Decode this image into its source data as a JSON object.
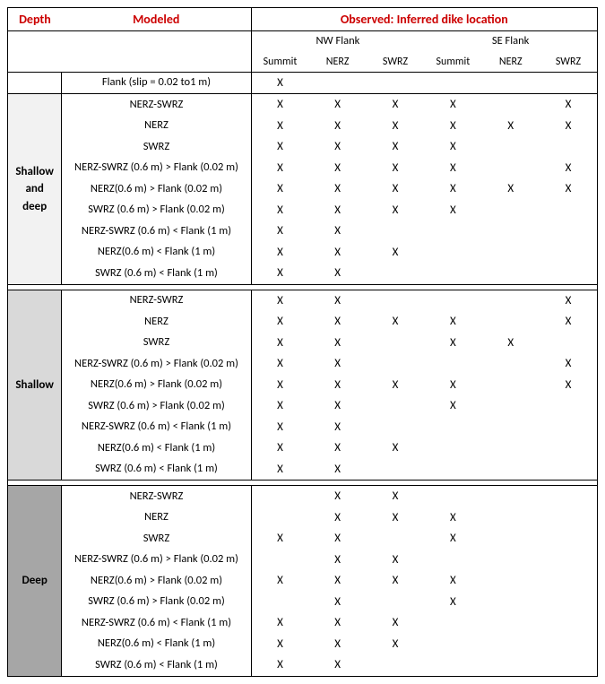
{
  "header": {
    "depth": "Depth",
    "modeled": "Modeled",
    "observed": "Observed: Inferred dike location",
    "nw_flank": "NW Flank",
    "se_flank": "SE Flank",
    "summit": "Summit",
    "nerz": "NERZ",
    "swrz": "SWRZ"
  },
  "flank_row": {
    "label": "Flank (slip = 0.02 to1 m)",
    "marks": [
      "X",
      "",
      "",
      "",
      "",
      ""
    ]
  },
  "sections": [
    {
      "depth_label": "Shallow\nand\ndeep",
      "bg": "bg1",
      "rows": [
        {
          "label": "NERZ-SWRZ",
          "marks": [
            "X",
            "X",
            "X",
            "X",
            "",
            "X"
          ]
        },
        {
          "label": "NERZ",
          "marks": [
            "X",
            "X",
            "X",
            "X",
            "X",
            "X"
          ]
        },
        {
          "label": "SWRZ",
          "marks": [
            "X",
            "X",
            "X",
            "X",
            "",
            ""
          ]
        },
        {
          "label": "NERZ-SWRZ (0.6 m) > Flank (0.02 m)",
          "marks": [
            "X",
            "X",
            "X",
            "X",
            "",
            "X"
          ]
        },
        {
          "label": "NERZ(0.6 m) > Flank (0.02 m)",
          "marks": [
            "X",
            "X",
            "X",
            "X",
            "X",
            "X"
          ]
        },
        {
          "label": "SWRZ (0.6 m) > Flank (0.02 m)",
          "marks": [
            "X",
            "X",
            "X",
            "X",
            "",
            ""
          ]
        },
        {
          "label": "NERZ-SWRZ (0.6 m) < Flank (1 m)",
          "marks": [
            "X",
            "X",
            "",
            "",
            "",
            ""
          ]
        },
        {
          "label": "NERZ(0.6 m) < Flank (1 m)",
          "marks": [
            "X",
            "X",
            "X",
            "",
            "",
            ""
          ]
        },
        {
          "label": "SWRZ (0.6 m) < Flank (1 m)",
          "marks": [
            "X",
            "X",
            "",
            "",
            "",
            ""
          ]
        }
      ]
    },
    {
      "depth_label": "Shallow",
      "bg": "bg2",
      "rows": [
        {
          "label": "NERZ-SWRZ",
          "marks": [
            "X",
            "X",
            "",
            "",
            "",
            "X"
          ]
        },
        {
          "label": "NERZ",
          "marks": [
            "X",
            "X",
            "X",
            "X",
            "",
            "X"
          ]
        },
        {
          "label": "SWRZ",
          "marks": [
            "X",
            "X",
            "",
            "X",
            "X",
            ""
          ]
        },
        {
          "label": "NERZ-SWRZ (0.6 m) > Flank (0.02 m)",
          "marks": [
            "X",
            "X",
            "",
            "",
            "",
            "X"
          ]
        },
        {
          "label": "NERZ(0.6 m) > Flank (0.02 m)",
          "marks": [
            "X",
            "X",
            "X",
            "X",
            "",
            "X"
          ]
        },
        {
          "label": "SWRZ (0.6 m) > Flank (0.02 m)",
          "marks": [
            "X",
            "X",
            "",
            "X",
            "",
            ""
          ]
        },
        {
          "label": "NERZ-SWRZ (0.6 m) < Flank (1 m)",
          "marks": [
            "X",
            "X",
            "",
            "",
            "",
            ""
          ]
        },
        {
          "label": "NERZ(0.6 m) < Flank (1 m)",
          "marks": [
            "X",
            "X",
            "X",
            "",
            "",
            ""
          ]
        },
        {
          "label": "SWRZ (0.6 m) < Flank (1 m)",
          "marks": [
            "X",
            "X",
            "",
            "",
            "",
            ""
          ]
        }
      ]
    },
    {
      "depth_label": "Deep",
      "bg": "bg3",
      "rows": [
        {
          "label": "NERZ-SWRZ",
          "marks": [
            "",
            "X",
            "X",
            "",
            "",
            ""
          ]
        },
        {
          "label": "NERZ",
          "marks": [
            "",
            "X",
            "X",
            "X",
            "",
            ""
          ]
        },
        {
          "label": "SWRZ",
          "marks": [
            "X",
            "X",
            "",
            "X",
            "",
            ""
          ]
        },
        {
          "label": "NERZ-SWRZ (0.6 m) > Flank (0.02 m)",
          "marks": [
            "",
            "X",
            "X",
            "",
            "",
            ""
          ]
        },
        {
          "label": "NERZ(0.6 m) > Flank (0.02 m)",
          "marks": [
            "X",
            "X",
            "X",
            "X",
            "",
            ""
          ]
        },
        {
          "label": "SWRZ (0.6 m) > Flank (0.02 m)",
          "marks": [
            "",
            "X",
            "",
            "X",
            "",
            ""
          ]
        },
        {
          "label": "NERZ-SWRZ (0.6 m) < Flank (1 m)",
          "marks": [
            "X",
            "X",
            "X",
            "",
            "",
            ""
          ]
        },
        {
          "label": "NERZ(0.6 m) < Flank (1 m)",
          "marks": [
            "X",
            "X",
            "X",
            "",
            "",
            ""
          ]
        },
        {
          "label": "SWRZ (0.6 m) < Flank (1 m)",
          "marks": [
            "X",
            "X",
            "",
            "",
            "",
            ""
          ]
        }
      ]
    }
  ]
}
